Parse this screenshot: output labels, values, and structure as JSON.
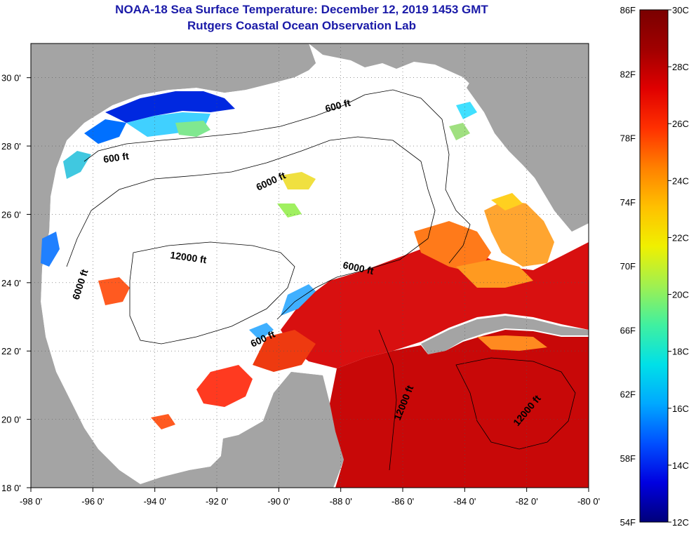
{
  "header": {
    "title": "NOAA-18 Sea Surface Temperature:  December 12, 2019 1453 GMT",
    "subtitle": "Rutgers Coastal Ocean Observation Lab"
  },
  "axes": {
    "lon_labels": [
      "-98 0'",
      "-96 0'",
      "-94 0'",
      "-92 0'",
      "-90 0'",
      "-88 0'",
      "-86 0'",
      "-84 0'",
      "-82 0'",
      "-80 0'"
    ],
    "lat_labels": [
      "30 0'",
      "28 0'",
      "26 0'",
      "24 0'",
      "22 0'",
      "20 0'",
      "18 0'"
    ]
  },
  "contours": {
    "labels": [
      "600 ft",
      "600 ft",
      "6000 ft",
      "12000 ft",
      "6000 ft",
      "6000 ft",
      "600 ft",
      "12000 ft",
      "12000 ft"
    ]
  },
  "colorbar": {
    "fahrenheit_labels": [
      "86F",
      "82F",
      "78F",
      "74F",
      "70F",
      "66F",
      "62F",
      "58F",
      "54F"
    ],
    "celsius_labels": [
      "30C",
      "28C",
      "26C",
      "24C",
      "22C",
      "20C",
      "18C",
      "16C",
      "14C",
      "12C"
    ],
    "colors": [
      "#00007a",
      "#0000e0",
      "#0050ff",
      "#00a8ff",
      "#00e0e8",
      "#40f0a0",
      "#a0f050",
      "#f0f000",
      "#ffc000",
      "#ff8000",
      "#ff3000",
      "#e00000",
      "#a00000",
      "#7a0000"
    ]
  },
  "colors": {
    "land": "#a4a4a4",
    "no_data": "#ffffff",
    "title_text": "#1a1aa8"
  }
}
